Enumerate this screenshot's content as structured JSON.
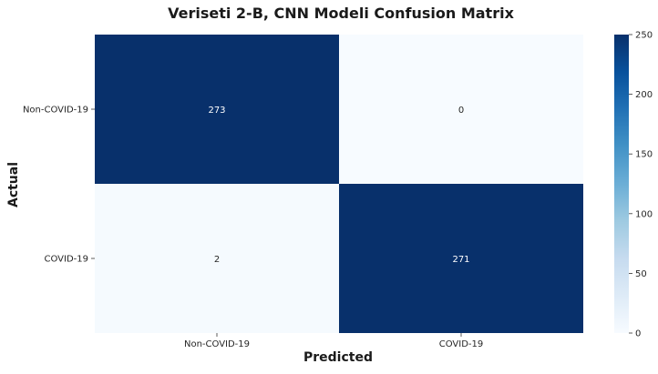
{
  "chart_data": {
    "type": "heatmap",
    "title": "Veriseti 2-B, CNN Modeli Confusion Matrix",
    "xlabel": "Predicted",
    "ylabel": "Actual",
    "x_categories": [
      "Non-COVID-19",
      "COVID-19"
    ],
    "y_categories": [
      "Non-COVID-19",
      "COVID-19"
    ],
    "values": [
      [
        273,
        0
      ],
      [
        2,
        271
      ]
    ],
    "colorbar": {
      "min": 0,
      "max": 250,
      "ticks": [
        0,
        50,
        100,
        150,
        200,
        250
      ],
      "colormap": "Blues",
      "low_color": "#f7fbff",
      "high_color": "#08306b"
    },
    "cell_label_colors": {
      "dark_text": "#262626",
      "light_text": "#ffffff"
    }
  }
}
